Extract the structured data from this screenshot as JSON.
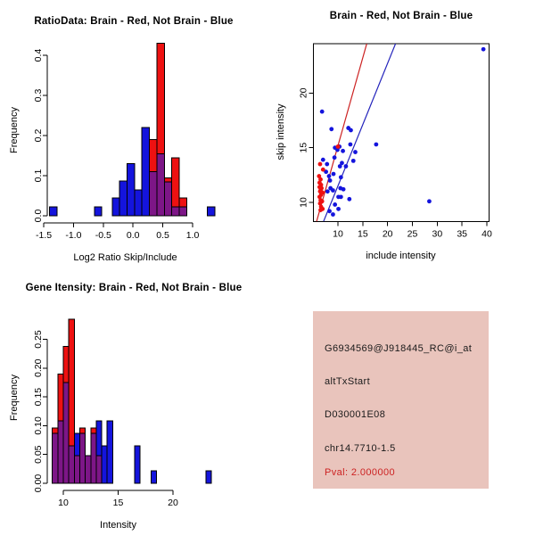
{
  "colors": {
    "hist_red": "#EE1111",
    "hist_blue": "#1414DD",
    "overlap_purple": "#7D1687",
    "line_red": "#CC2222",
    "line_blue": "#2222BB",
    "axis_black": "#000000",
    "info_bg": "#E9C4BC",
    "pval_red": "#CC2222"
  },
  "chart_data": [
    {
      "id": "ratio_hist",
      "type": "bar",
      "title": "RatioData: Brain - Red, Not Brain - Blue",
      "xlabel": "Log2 Ratio Skip/Include",
      "ylabel": "Frequency",
      "legend_note": "Brain histogram red, Not Brain histogram blue, overlap purple",
      "xlim": [
        -1.65,
        1.45
      ],
      "ylim": [
        0,
        0.44
      ],
      "grid": false,
      "xticks": [
        [
          -1.5,
          "-1.5"
        ],
        [
          -1.0,
          "-1.0"
        ],
        [
          -0.5,
          "-0.5"
        ],
        [
          0.0,
          "0.0"
        ],
        [
          0.5,
          "0.5"
        ],
        [
          1.0,
          "1.0"
        ]
      ],
      "yticks": [
        [
          0.0,
          "0.0"
        ],
        [
          0.1,
          "0.1"
        ],
        [
          0.2,
          "0.2"
        ],
        [
          0.3,
          "0.3"
        ],
        [
          0.4,
          "0.4"
        ]
      ],
      "bars": [
        {
          "x0": -1.4,
          "x1": -1.275,
          "blue": 0.022,
          "red": 0
        },
        {
          "x0": -0.65,
          "x1": -0.525,
          "blue": 0.022,
          "red": 0
        },
        {
          "x0": -0.35,
          "x1": -0.225,
          "blue": 0.045,
          "red": 0
        },
        {
          "x0": -0.225,
          "x1": -0.1,
          "blue": 0.087,
          "red": 0
        },
        {
          "x0": -0.1,
          "x1": 0.025,
          "blue": 0.13,
          "red": 0
        },
        {
          "x0": 0.025,
          "x1": 0.15,
          "blue": 0.065,
          "red": 0
        },
        {
          "x0": 0.15,
          "x1": 0.275,
          "blue": 0.22,
          "red": 0
        },
        {
          "x0": 0.275,
          "x1": 0.4,
          "blue": 0.11,
          "red": 0.19
        },
        {
          "x0": 0.4,
          "x1": 0.525,
          "blue": 0.155,
          "red": 0.43
        },
        {
          "x0": 0.525,
          "x1": 0.65,
          "blue": 0.085,
          "red": 0.095
        },
        {
          "x0": 0.65,
          "x1": 0.775,
          "blue": 0.022,
          "red": 0.145
        },
        {
          "x0": 0.775,
          "x1": 0.9,
          "blue": 0.022,
          "red": 0.045
        },
        {
          "x0": 1.25,
          "x1": 1.375,
          "blue": 0.022,
          "red": 0
        }
      ]
    },
    {
      "id": "scatter",
      "type": "scatter",
      "title": "Brain - Red, Not Brain - Blue",
      "xlabel": "include intensity",
      "ylabel": "skip intensity",
      "legend_note": "Brain points red, Not Brain points blue, fitted lines red and blue",
      "xlim": [
        5.1,
        40.5
      ],
      "ylim": [
        8.3,
        24.5
      ],
      "grid": false,
      "xticks": [
        [
          10,
          "10"
        ],
        [
          15,
          "15"
        ],
        [
          20,
          "20"
        ],
        [
          25,
          "25"
        ],
        [
          30,
          "30"
        ],
        [
          35,
          "35"
        ],
        [
          40,
          "40"
        ]
      ],
      "yticks": [
        [
          10,
          "10"
        ],
        [
          15,
          "15"
        ],
        [
          20,
          "20"
        ]
      ],
      "line_red": [
        [
          5.7,
          8.26
        ],
        [
          15.8,
          24.5
        ]
      ],
      "line_blue": [
        [
          7.1,
          8.26
        ],
        [
          21.6,
          24.5
        ]
      ],
      "points_blue": [
        [
          39.3,
          24.0
        ],
        [
          6.8,
          18.3
        ],
        [
          8.7,
          16.7
        ],
        [
          12.1,
          16.8
        ],
        [
          12.6,
          16.6
        ],
        [
          12.5,
          15.3
        ],
        [
          17.7,
          15.3
        ],
        [
          9.4,
          15.0
        ],
        [
          9.9,
          14.8
        ],
        [
          10.3,
          15.1
        ],
        [
          11.0,
          14.7
        ],
        [
          13.5,
          14.6
        ],
        [
          9.3,
          14.1
        ],
        [
          13.1,
          13.8
        ],
        [
          10.8,
          13.6
        ],
        [
          10.4,
          13.3
        ],
        [
          11.6,
          13.3
        ],
        [
          7.8,
          13.5
        ],
        [
          7.0,
          13.9
        ],
        [
          8.2,
          12.4
        ],
        [
          9.1,
          12.6
        ],
        [
          10.6,
          12.3
        ],
        [
          8.4,
          12.0
        ],
        [
          7.6,
          12.8
        ],
        [
          8.5,
          11.3
        ],
        [
          9.0,
          11.1
        ],
        [
          10.5,
          11.3
        ],
        [
          11.1,
          11.2
        ],
        [
          7.9,
          11.0
        ],
        [
          10.1,
          10.5
        ],
        [
          10.6,
          10.5
        ],
        [
          12.3,
          10.3
        ],
        [
          9.4,
          9.8
        ],
        [
          10.1,
          9.4
        ],
        [
          8.3,
          9.2
        ],
        [
          9.0,
          8.9
        ],
        [
          28.4,
          10.1
        ]
      ],
      "points_red": [
        [
          6.4,
          13.5
        ],
        [
          7.0,
          13.0
        ],
        [
          10.0,
          15.1
        ],
        [
          6.2,
          12.4
        ],
        [
          6.5,
          12.1
        ],
        [
          6.3,
          11.8
        ],
        [
          6.6,
          11.6
        ],
        [
          6.3,
          11.4
        ],
        [
          6.7,
          11.3
        ],
        [
          6.5,
          11.1
        ],
        [
          6.4,
          11.0
        ],
        [
          6.9,
          10.9
        ],
        [
          6.6,
          10.7
        ],
        [
          6.3,
          10.5
        ],
        [
          6.5,
          10.2
        ],
        [
          6.8,
          10.1
        ],
        [
          6.4,
          9.9
        ],
        [
          6.6,
          9.6
        ],
        [
          6.9,
          9.4
        ],
        [
          6.5,
          9.3
        ]
      ]
    },
    {
      "id": "gene_hist",
      "type": "bar",
      "title": "Gene Itensity: Brain - Red, Not Brain - Blue",
      "xlabel": "Intensity",
      "ylabel": "Frequency",
      "legend_note": "Brain histogram red, Not Brain histogram blue, overlap purple",
      "xlim": [
        8.9,
        23.7
      ],
      "ylim": [
        0,
        0.3
      ],
      "grid": false,
      "xticks": [
        [
          10,
          "10"
        ],
        [
          15,
          "15"
        ],
        [
          20,
          "20"
        ]
      ],
      "yticks": [
        [
          0.0,
          "0.00"
        ],
        [
          0.05,
          "0.05"
        ],
        [
          0.1,
          "0.10"
        ],
        [
          0.15,
          "0.15"
        ],
        [
          0.2,
          "0.20"
        ],
        [
          0.25,
          "0.25"
        ]
      ],
      "bars": [
        {
          "x0": 9.0,
          "x1": 9.5,
          "blue": 0.087,
          "red": 0.096
        },
        {
          "x0": 9.5,
          "x1": 10.0,
          "blue": 0.108,
          "red": 0.19
        },
        {
          "x0": 10.0,
          "x1": 10.5,
          "blue": 0.175,
          "red": 0.238
        },
        {
          "x0": 10.5,
          "x1": 11.0,
          "blue": 0.065,
          "red": 0.285
        },
        {
          "x0": 11.0,
          "x1": 11.5,
          "blue": 0.087,
          "red": 0.048
        },
        {
          "x0": 11.5,
          "x1": 12.0,
          "blue": 0.087,
          "red": 0.096
        },
        {
          "x0": 12.0,
          "x1": 12.5,
          "blue": 0.048,
          "red": 0.048
        },
        {
          "x0": 12.5,
          "x1": 13.0,
          "blue": 0.087,
          "red": 0.096
        },
        {
          "x0": 13.0,
          "x1": 13.5,
          "blue": 0.108,
          "red": 0.048
        },
        {
          "x0": 13.5,
          "x1": 14.0,
          "blue": 0.065,
          "red": 0
        },
        {
          "x0": 14.0,
          "x1": 14.5,
          "blue": 0.108,
          "red": 0
        },
        {
          "x0": 16.5,
          "x1": 17.0,
          "blue": 0.065,
          "red": 0
        },
        {
          "x0": 18.0,
          "x1": 18.5,
          "blue": 0.022,
          "red": 0
        },
        {
          "x0": 23.0,
          "x1": 23.5,
          "blue": 0.022,
          "red": 0
        }
      ]
    }
  ],
  "info_panel": {
    "lines": [
      "G6934569@J918445_RC@i_at",
      "altTxStart",
      "D030001E08",
      "chr14.7710-1.5"
    ],
    "pval": "Pval: 2.000000"
  }
}
